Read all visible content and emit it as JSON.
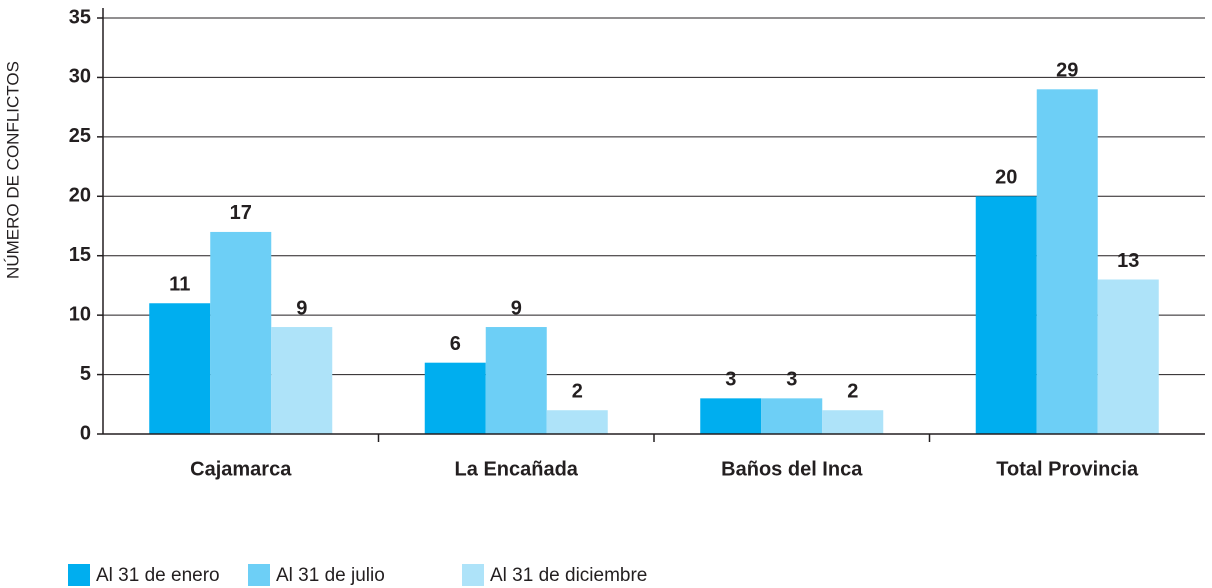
{
  "chart_data": {
    "type": "bar",
    "y_axis_label": "NÚMERO DE CONFLICTOS",
    "categories": [
      "Cajamarca",
      "La Encañada",
      "Baños del Inca",
      "Total Provincia"
    ],
    "series": [
      {
        "name": "Al 31 de enero",
        "color": "#00aeef",
        "values": [
          11,
          6,
          3,
          20
        ]
      },
      {
        "name": "Al 31 de julio",
        "color": "#6dcff6",
        "values": [
          17,
          9,
          3,
          29
        ]
      },
      {
        "name": "Al 31 de diciembre",
        "color": "#aee3f9",
        "values": [
          9,
          2,
          2,
          13
        ]
      }
    ],
    "ylim": [
      0,
      35
    ],
    "yticks": [
      0,
      5,
      10,
      15,
      20,
      25,
      30,
      35
    ],
    "grid": true,
    "legend": "bottom"
  }
}
